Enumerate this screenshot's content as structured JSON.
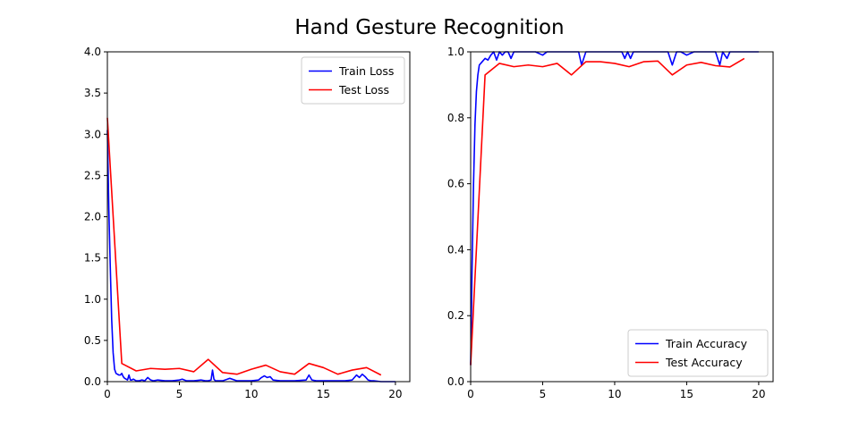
{
  "figure": {
    "title": "Hand Gesture Recognition"
  },
  "chart_data": [
    {
      "type": "line",
      "xlim": [
        0,
        21
      ],
      "ylim": [
        0,
        4.0
      ],
      "xticks": [
        0,
        5,
        10,
        15,
        20
      ],
      "yticks": [
        0.0,
        0.5,
        1.0,
        1.5,
        2.0,
        2.5,
        3.0,
        3.5,
        4.0
      ],
      "xtick_labels": [
        "0",
        "5",
        "10",
        "15",
        "20"
      ],
      "ytick_labels": [
        "0.0",
        "0.5",
        "1.0",
        "1.5",
        "2.0",
        "2.5",
        "3.0",
        "3.5",
        "4.0"
      ],
      "legend_position": "top-right",
      "series": [
        {
          "name": "Train Loss",
          "color": "#0000ff",
          "x": [
            0,
            0.1,
            0.2,
            0.3,
            0.4,
            0.5,
            0.6,
            0.7,
            0.8,
            0.9,
            1.0,
            1.1,
            1.2,
            1.3,
            1.4,
            1.5,
            1.6,
            1.7,
            1.8,
            2.0,
            2.2,
            2.4,
            2.6,
            2.8,
            3.0,
            3.2,
            3.5,
            4.0,
            4.5,
            5.0,
            5.2,
            5.5,
            6.0,
            6.5,
            6.8,
            7.0,
            7.2,
            7.3,
            7.4,
            7.5,
            8.0,
            8.5,
            9.0,
            9.5,
            10.0,
            10.5,
            10.7,
            10.9,
            11.1,
            11.3,
            11.5,
            12.0,
            13.0,
            13.8,
            14.0,
            14.2,
            14.5,
            15.0,
            15.5,
            16.0,
            16.5,
            17.0,
            17.3,
            17.5,
            17.7,
            17.9,
            18.1,
            18.3,
            18.5,
            19.0,
            19.5,
            20.0
          ],
          "y": [
            3.05,
            2.1,
            1.4,
            0.75,
            0.35,
            0.15,
            0.1,
            0.09,
            0.08,
            0.08,
            0.1,
            0.06,
            0.04,
            0.03,
            0.02,
            0.08,
            0.02,
            0.02,
            0.03,
            0.01,
            0.01,
            0.02,
            0.01,
            0.05,
            0.02,
            0.01,
            0.02,
            0.01,
            0.01,
            0.02,
            0.03,
            0.01,
            0.01,
            0.02,
            0.01,
            0.01,
            0.02,
            0.14,
            0.03,
            0.01,
            0.01,
            0.04,
            0.01,
            0.01,
            0.01,
            0.02,
            0.05,
            0.07,
            0.05,
            0.06,
            0.02,
            0.01,
            0.01,
            0.02,
            0.08,
            0.02,
            0.01,
            0.01,
            0.01,
            0.01,
            0.01,
            0.02,
            0.08,
            0.05,
            0.09,
            0.06,
            0.02,
            0.01,
            0.01,
            0.0,
            0.0,
            0.0
          ]
        },
        {
          "name": "Test Loss",
          "color": "#ff0000",
          "x": [
            0,
            1,
            2,
            3,
            4,
            5,
            6,
            7,
            8,
            9,
            10,
            11,
            12,
            13,
            14,
            15,
            16,
            17,
            18,
            19
          ],
          "y": [
            3.2,
            0.22,
            0.13,
            0.16,
            0.15,
            0.16,
            0.12,
            0.27,
            0.11,
            0.09,
            0.15,
            0.2,
            0.12,
            0.09,
            0.22,
            0.17,
            0.09,
            0.14,
            0.17,
            0.08
          ]
        }
      ]
    },
    {
      "type": "line",
      "xlim": [
        0,
        21
      ],
      "ylim": [
        0,
        1.0
      ],
      "xticks": [
        0,
        5,
        10,
        15,
        20
      ],
      "yticks": [
        0.0,
        0.2,
        0.4,
        0.6,
        0.8,
        1.0
      ],
      "xtick_labels": [
        "0",
        "5",
        "10",
        "15",
        "20"
      ],
      "ytick_labels": [
        "0.0",
        "0.2",
        "0.4",
        "0.6",
        "0.8",
        "1.0"
      ],
      "legend_position": "bottom-right",
      "series": [
        {
          "name": "Train Accuracy",
          "color": "#0000ff",
          "x": [
            0,
            0.1,
            0.2,
            0.3,
            0.4,
            0.5,
            0.6,
            0.8,
            1.0,
            1.2,
            1.4,
            1.6,
            1.8,
            2.0,
            2.2,
            2.4,
            2.6,
            2.8,
            3.0,
            3.2,
            3.5,
            4.0,
            4.5,
            5.0,
            5.3,
            5.6,
            6.0,
            6.5,
            7.0,
            7.3,
            7.5,
            7.7,
            8.0,
            8.5,
            9.0,
            9.5,
            10.0,
            10.5,
            10.7,
            10.9,
            11.1,
            11.3,
            11.6,
            12.0,
            13.0,
            13.7,
            14.0,
            14.3,
            14.6,
            15.0,
            15.5,
            16.0,
            16.5,
            17.0,
            17.3,
            17.5,
            17.8,
            18.0,
            18.3,
            18.6,
            19.0,
            19.5,
            20.0
          ],
          "y": [
            0.05,
            0.35,
            0.6,
            0.78,
            0.88,
            0.93,
            0.96,
            0.97,
            0.98,
            0.975,
            0.99,
            1.0,
            0.975,
            1.0,
            0.99,
            1.0,
            1.0,
            0.98,
            1.0,
            1.0,
            1.0,
            1.0,
            1.0,
            0.99,
            1.0,
            1.0,
            1.0,
            1.0,
            1.0,
            1.0,
            1.0,
            0.96,
            1.0,
            1.0,
            1.0,
            1.0,
            1.0,
            1.0,
            0.98,
            1.0,
            0.98,
            1.0,
            1.0,
            1.0,
            1.0,
            1.0,
            0.96,
            1.0,
            1.0,
            0.99,
            1.0,
            1.0,
            1.0,
            1.0,
            0.96,
            1.0,
            0.98,
            1.0,
            1.0,
            1.0,
            1.0,
            1.0,
            1.0
          ]
        },
        {
          "name": "Test Accuracy",
          "color": "#ff0000",
          "x": [
            0,
            1,
            2,
            3,
            4,
            5,
            6,
            7,
            8,
            9,
            10,
            11,
            12,
            13,
            14,
            15,
            16,
            17,
            18,
            19
          ],
          "y": [
            0.05,
            0.93,
            0.965,
            0.955,
            0.96,
            0.955,
            0.965,
            0.93,
            0.97,
            0.97,
            0.965,
            0.955,
            0.97,
            0.972,
            0.93,
            0.96,
            0.968,
            0.958,
            0.954,
            0.98
          ]
        }
      ]
    }
  ]
}
